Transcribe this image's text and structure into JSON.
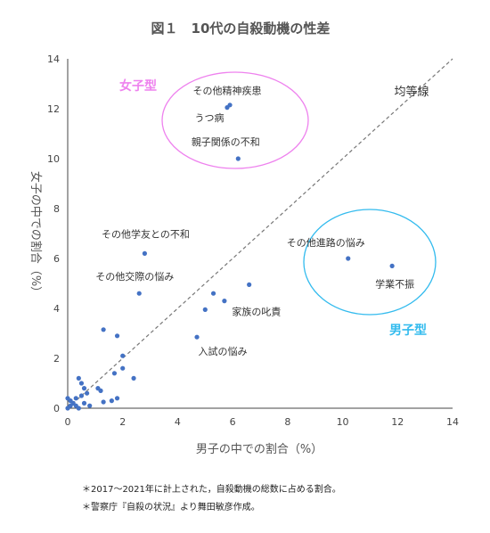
{
  "chart_data": {
    "type": "scatter",
    "title": "図１　10代の自殺動機の性差",
    "xlabel": "男子の中での割合（%）",
    "ylabel": "女子の中での割合（%）",
    "xlim": [
      0,
      14
    ],
    "ylim": [
      0,
      14
    ],
    "xticks": [
      0,
      2,
      4,
      6,
      8,
      10,
      12,
      14
    ],
    "yticks": [
      0,
      2,
      4,
      6,
      8,
      10,
      12,
      14
    ],
    "grid": false,
    "equality_line_label": "均等線",
    "point_color": "#4472c4",
    "points": [
      {
        "x": 5.8,
        "y": 12.05,
        "label": "その他精神疾患"
      },
      {
        "x": 5.9,
        "y": 12.15,
        "label": "うつ病"
      },
      {
        "x": 6.2,
        "y": 10.0,
        "label": "親子関係の不和"
      },
      {
        "x": 2.8,
        "y": 6.2,
        "label": "その他学友との不和"
      },
      {
        "x": 2.6,
        "y": 4.6,
        "label": "その他交際の悩み"
      },
      {
        "x": 10.2,
        "y": 6.0,
        "label": "その他進路の悩み"
      },
      {
        "x": 11.8,
        "y": 5.7,
        "label": "学業不振"
      },
      {
        "x": 5.7,
        "y": 4.3,
        "label": "家族の叱責"
      },
      {
        "x": 4.7,
        "y": 2.85,
        "label": "入試の悩み"
      },
      {
        "x": 5.3,
        "y": 4.6,
        "label": ""
      },
      {
        "x": 6.6,
        "y": 4.95,
        "label": ""
      },
      {
        "x": 5.0,
        "y": 3.95,
        "label": ""
      },
      {
        "x": 1.3,
        "y": 3.15,
        "label": ""
      },
      {
        "x": 1.8,
        "y": 2.9,
        "label": ""
      },
      {
        "x": 2.0,
        "y": 2.1,
        "label": ""
      },
      {
        "x": 2.0,
        "y": 1.6,
        "label": ""
      },
      {
        "x": 1.7,
        "y": 1.4,
        "label": ""
      },
      {
        "x": 2.4,
        "y": 1.2,
        "label": ""
      },
      {
        "x": 0.4,
        "y": 1.2,
        "label": ""
      },
      {
        "x": 0.5,
        "y": 1.0,
        "label": ""
      },
      {
        "x": 0.6,
        "y": 0.8,
        "label": ""
      },
      {
        "x": 0.7,
        "y": 0.6,
        "label": ""
      },
      {
        "x": 1.1,
        "y": 0.8,
        "label": ""
      },
      {
        "x": 1.2,
        "y": 0.7,
        "label": ""
      },
      {
        "x": 0.5,
        "y": 0.5,
        "label": ""
      },
      {
        "x": 0.3,
        "y": 0.4,
        "label": ""
      },
      {
        "x": 0.0,
        "y": 0.4,
        "label": ""
      },
      {
        "x": 0.1,
        "y": 0.3,
        "label": ""
      },
      {
        "x": 0.2,
        "y": 0.2,
        "label": ""
      },
      {
        "x": 0.1,
        "y": 0.1,
        "label": ""
      },
      {
        "x": 0.0,
        "y": 0.0,
        "label": ""
      },
      {
        "x": 0.3,
        "y": 0.1,
        "label": ""
      },
      {
        "x": 0.6,
        "y": 0.2,
        "label": ""
      },
      {
        "x": 0.8,
        "y": 0.1,
        "label": ""
      },
      {
        "x": 1.3,
        "y": 0.25,
        "label": ""
      },
      {
        "x": 1.6,
        "y": 0.3,
        "label": ""
      },
      {
        "x": 1.8,
        "y": 0.4,
        "label": ""
      },
      {
        "x": 0.4,
        "y": 0.0,
        "label": ""
      }
    ],
    "groups": [
      {
        "name": "女子型",
        "color": "#ee82ee"
      },
      {
        "name": "男子型",
        "color": "#33bbee"
      }
    ]
  },
  "notes": [
    "＊2017～2021年に計上された，自殺動機の総数に占める割合。",
    "＊警察庁『自殺の状況』より舞田敏彦作成。"
  ]
}
